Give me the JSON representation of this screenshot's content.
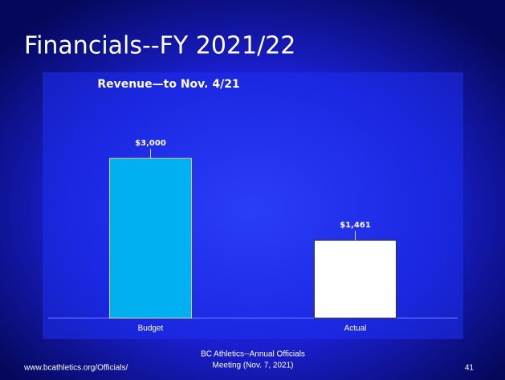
{
  "slide": {
    "title": "Financials--FY 2021/22",
    "footer": {
      "left": "www.bcathletics.org/Officials/",
      "center": [
        "BC Athletics--Annual Officials",
        "Meeting (Nov. 7, 2021)"
      ],
      "page": "41"
    }
  },
  "chart_data": {
    "type": "bar",
    "title": "Revenue—to Nov. 4/21",
    "categories": [
      "Budget",
      "Actual"
    ],
    "values": [
      3000,
      1461
    ],
    "value_labels": [
      "$3,000",
      "$1,461"
    ],
    "colors": [
      "#00b0f0",
      "#ffffff"
    ],
    "ylim": [
      0,
      3500
    ]
  }
}
